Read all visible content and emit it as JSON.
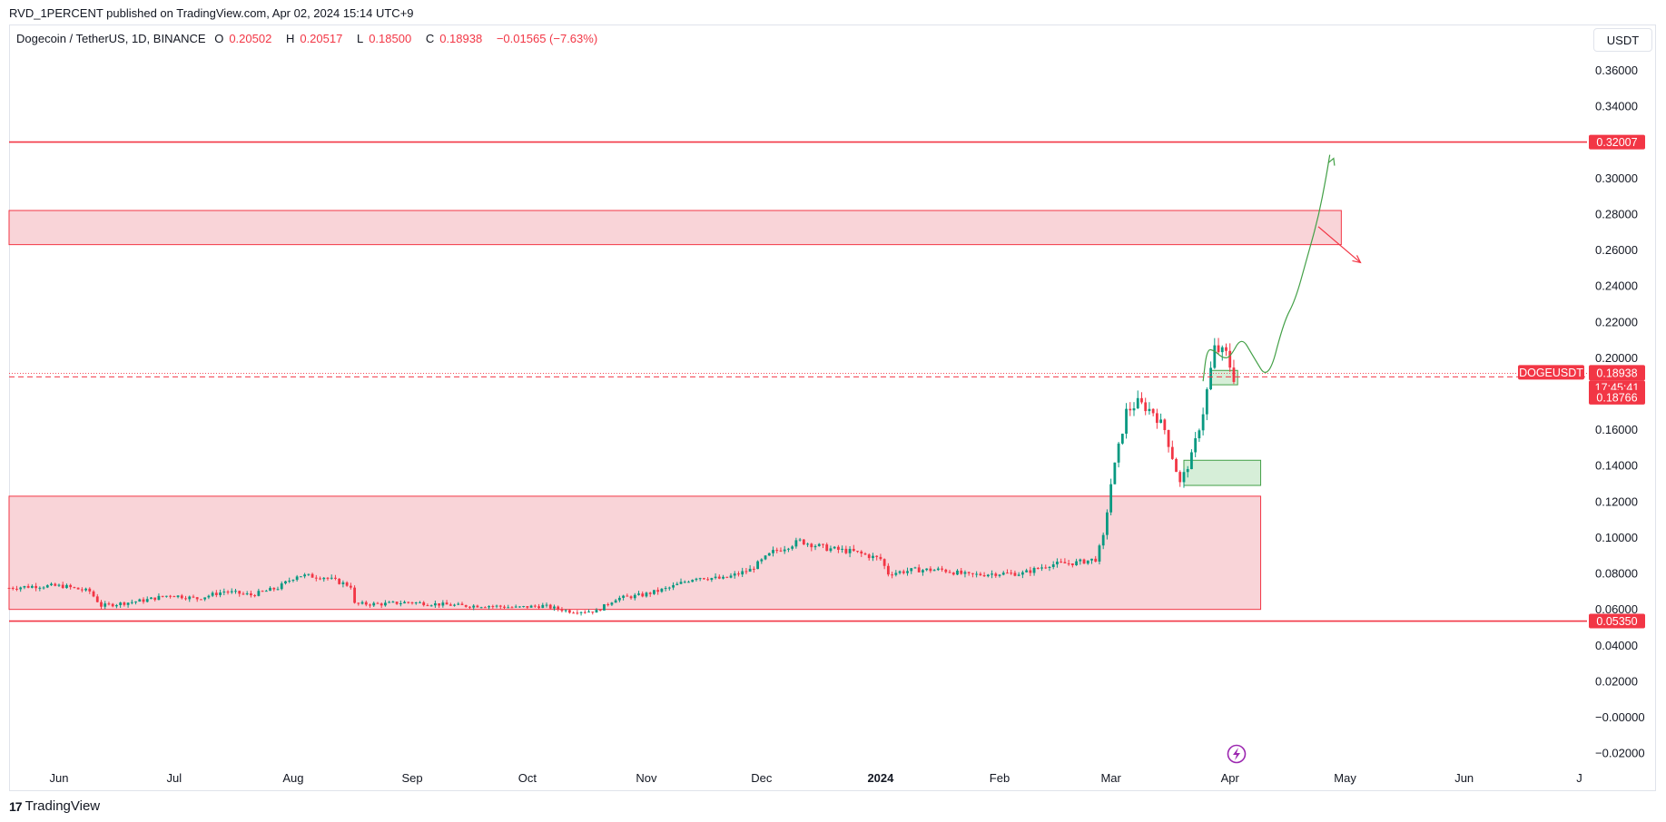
{
  "header": {
    "publisher": "RVD_1PERCENT published on TradingView.com, Apr 02, 2024 15:14 UTC+9"
  },
  "legend": {
    "symbol": "Dogecoin / TetherUS, 1D, BINANCE",
    "o_label": "O",
    "o_value": "0.20502",
    "h_label": "H",
    "h_value": "0.20517",
    "l_label": "L",
    "l_value": "0.18500",
    "c_label": "C",
    "c_value": "0.18938",
    "change": "−0.01565 (−7.63%)"
  },
  "currency": "USDT",
  "footer": {
    "brand": "TradingView",
    "logo_mark": "17"
  },
  "colors": {
    "up": "#089981",
    "down": "#f23645",
    "zone_fill": "#f9d4d8",
    "zone_line": "#f23645",
    "green_zone_fill": "#d6eed8",
    "green_zone_line": "#43a047",
    "path_green": "#43a047",
    "arrow_red": "#f23645",
    "purple_icon": "#9c27b0"
  },
  "chart_data": {
    "type": "candlestick",
    "symbol": "DOGEUSDT",
    "interval": "1D",
    "yaxis": {
      "range": [
        -0.026,
        0.385
      ],
      "ticks": [
        "0.36000",
        "0.34000",
        "0.30000",
        "0.28000",
        "0.26000",
        "0.24000",
        "0.22000",
        "0.20000",
        "0.16000",
        "0.14000",
        "0.12000",
        "0.10000",
        "0.08000",
        "0.06000",
        "0.04000",
        "0.02000",
        "−0.00000",
        "−0.02000"
      ],
      "tick_values": [
        0.36,
        0.34,
        0.3,
        0.28,
        0.26,
        0.24,
        0.22,
        0.2,
        0.16,
        0.14,
        0.12,
        0.1,
        0.08,
        0.06,
        0.04,
        0.02,
        0.0,
        -0.02
      ]
    },
    "xaxis": {
      "start_date": "2023-05-19",
      "end_date": "2024-07-03",
      "labels": [
        {
          "label": "Jun",
          "date": "2023-06-01"
        },
        {
          "label": "Jul",
          "date": "2023-07-01"
        },
        {
          "label": "Aug",
          "date": "2023-08-01"
        },
        {
          "label": "Sep",
          "date": "2023-09-01"
        },
        {
          "label": "Oct",
          "date": "2023-10-01"
        },
        {
          "label": "Nov",
          "date": "2023-11-01"
        },
        {
          "label": "Dec",
          "date": "2023-12-01"
        },
        {
          "label": "2024",
          "date": "2024-01-01",
          "bold": true
        },
        {
          "label": "Feb",
          "date": "2024-02-01"
        },
        {
          "label": "Mar",
          "date": "2024-03-01"
        },
        {
          "label": "Apr",
          "date": "2024-04-01"
        },
        {
          "label": "May",
          "date": "2024-05-01"
        },
        {
          "label": "Jun",
          "date": "2024-06-01"
        },
        {
          "label": "J",
          "date": "2024-07-01"
        }
      ]
    },
    "price_series": [
      [
        "2023-05-19",
        0.072
      ],
      [
        "2023-05-26",
        0.073
      ],
      [
        "2023-06-02",
        0.073
      ],
      [
        "2023-06-09",
        0.07
      ],
      [
        "2023-06-12",
        0.062
      ],
      [
        "2023-06-16",
        0.063
      ],
      [
        "2023-06-23",
        0.065
      ],
      [
        "2023-06-30",
        0.068
      ],
      [
        "2023-07-07",
        0.066
      ],
      [
        "2023-07-14",
        0.07
      ],
      [
        "2023-07-21",
        0.068
      ],
      [
        "2023-07-28",
        0.072
      ],
      [
        "2023-08-02",
        0.079
      ],
      [
        "2023-08-09",
        0.078
      ],
      [
        "2023-08-16",
        0.073
      ],
      [
        "2023-08-17",
        0.063
      ],
      [
        "2023-08-24",
        0.063
      ],
      [
        "2023-08-31",
        0.064
      ],
      [
        "2023-09-07",
        0.063
      ],
      [
        "2023-09-14",
        0.062
      ],
      [
        "2023-09-21",
        0.062
      ],
      [
        "2023-09-28",
        0.061
      ],
      [
        "2023-10-05",
        0.062
      ],
      [
        "2023-10-12",
        0.059
      ],
      [
        "2023-10-19",
        0.059
      ],
      [
        "2023-10-24",
        0.066
      ],
      [
        "2023-10-31",
        0.068
      ],
      [
        "2023-11-07",
        0.072
      ],
      [
        "2023-11-14",
        0.078
      ],
      [
        "2023-11-21",
        0.077
      ],
      [
        "2023-11-28",
        0.082
      ],
      [
        "2023-12-04",
        0.092
      ],
      [
        "2023-12-11",
        0.098
      ],
      [
        "2023-12-18",
        0.094
      ],
      [
        "2023-12-25",
        0.092
      ],
      [
        "2024-01-01",
        0.088
      ],
      [
        "2024-01-03",
        0.08
      ],
      [
        "2024-01-10",
        0.082
      ],
      [
        "2024-01-17",
        0.082
      ],
      [
        "2024-01-24",
        0.079
      ],
      [
        "2024-01-31",
        0.08
      ],
      [
        "2024-02-07",
        0.08
      ],
      [
        "2024-02-14",
        0.085
      ],
      [
        "2024-02-21",
        0.086
      ],
      [
        "2024-02-26",
        0.088
      ],
      [
        "2024-02-28",
        0.1
      ],
      [
        "2024-03-01",
        0.13
      ],
      [
        "2024-03-04",
        0.16
      ],
      [
        "2024-03-05",
        0.17
      ],
      [
        "2024-03-08",
        0.175
      ],
      [
        "2024-03-12",
        0.17
      ],
      [
        "2024-03-15",
        0.16
      ],
      [
        "2024-03-19",
        0.13
      ],
      [
        "2024-03-22",
        0.145
      ],
      [
        "2024-03-25",
        0.17
      ],
      [
        "2024-03-28",
        0.205
      ],
      [
        "2024-03-31",
        0.202
      ],
      [
        "2024-04-02",
        0.189
      ]
    ],
    "price_lines": [
      {
        "value": 0.32007,
        "label": "0.32007"
      },
      {
        "value": 0.0535,
        "label": "0.05350"
      }
    ],
    "current_price": {
      "name": "DOGEUSDT",
      "value": 0.18938,
      "label": "0.18938",
      "countdown": "17:45:41",
      "prev_label": "0.18766",
      "prev_value": 0.18766
    },
    "zones": [
      {
        "name": "resistance-zone",
        "y_top": 0.282,
        "y_bottom": 0.263,
        "x_start": "2023-05-19",
        "x_end": "2024-04-30"
      },
      {
        "name": "support-zone",
        "y_top": 0.123,
        "y_bottom": 0.06,
        "x_start": "2023-05-19",
        "x_end": "2024-04-09"
      }
    ],
    "green_zones": [
      {
        "name": "demand-zone-lower",
        "y_top": 0.143,
        "y_bottom": 0.129,
        "x_start": "2024-03-20",
        "x_end": "2024-04-09"
      },
      {
        "name": "demand-zone-upper",
        "y_top": 0.193,
        "y_bottom": 0.185,
        "x_start": "2024-03-27",
        "x_end": "2024-04-03"
      }
    ],
    "projection_path": [
      [
        "2024-03-25",
        0.187
      ],
      [
        "2024-03-26",
        0.205
      ],
      [
        "2024-03-28",
        0.204
      ],
      [
        "2024-03-30",
        0.2
      ],
      [
        "2024-04-01",
        0.2
      ],
      [
        "2024-04-04",
        0.212
      ],
      [
        "2024-04-07",
        0.201
      ],
      [
        "2024-04-11",
        0.187
      ],
      [
        "2024-04-15",
        0.22
      ],
      [
        "2024-04-18",
        0.232
      ],
      [
        "2024-04-21",
        0.255
      ],
      [
        "2024-04-24",
        0.278
      ],
      [
        "2024-04-26",
        0.3
      ],
      [
        "2024-04-27",
        0.313
      ]
    ],
    "arrows": [
      {
        "name": "projection-arrow-up",
        "color": "green",
        "end": [
          "2024-04-28",
          0.311
        ]
      },
      {
        "name": "rejection-arrow-down",
        "color": "red",
        "start": [
          "2024-04-24",
          0.273
        ],
        "end": [
          "2024-05-05",
          0.253
        ]
      }
    ]
  }
}
